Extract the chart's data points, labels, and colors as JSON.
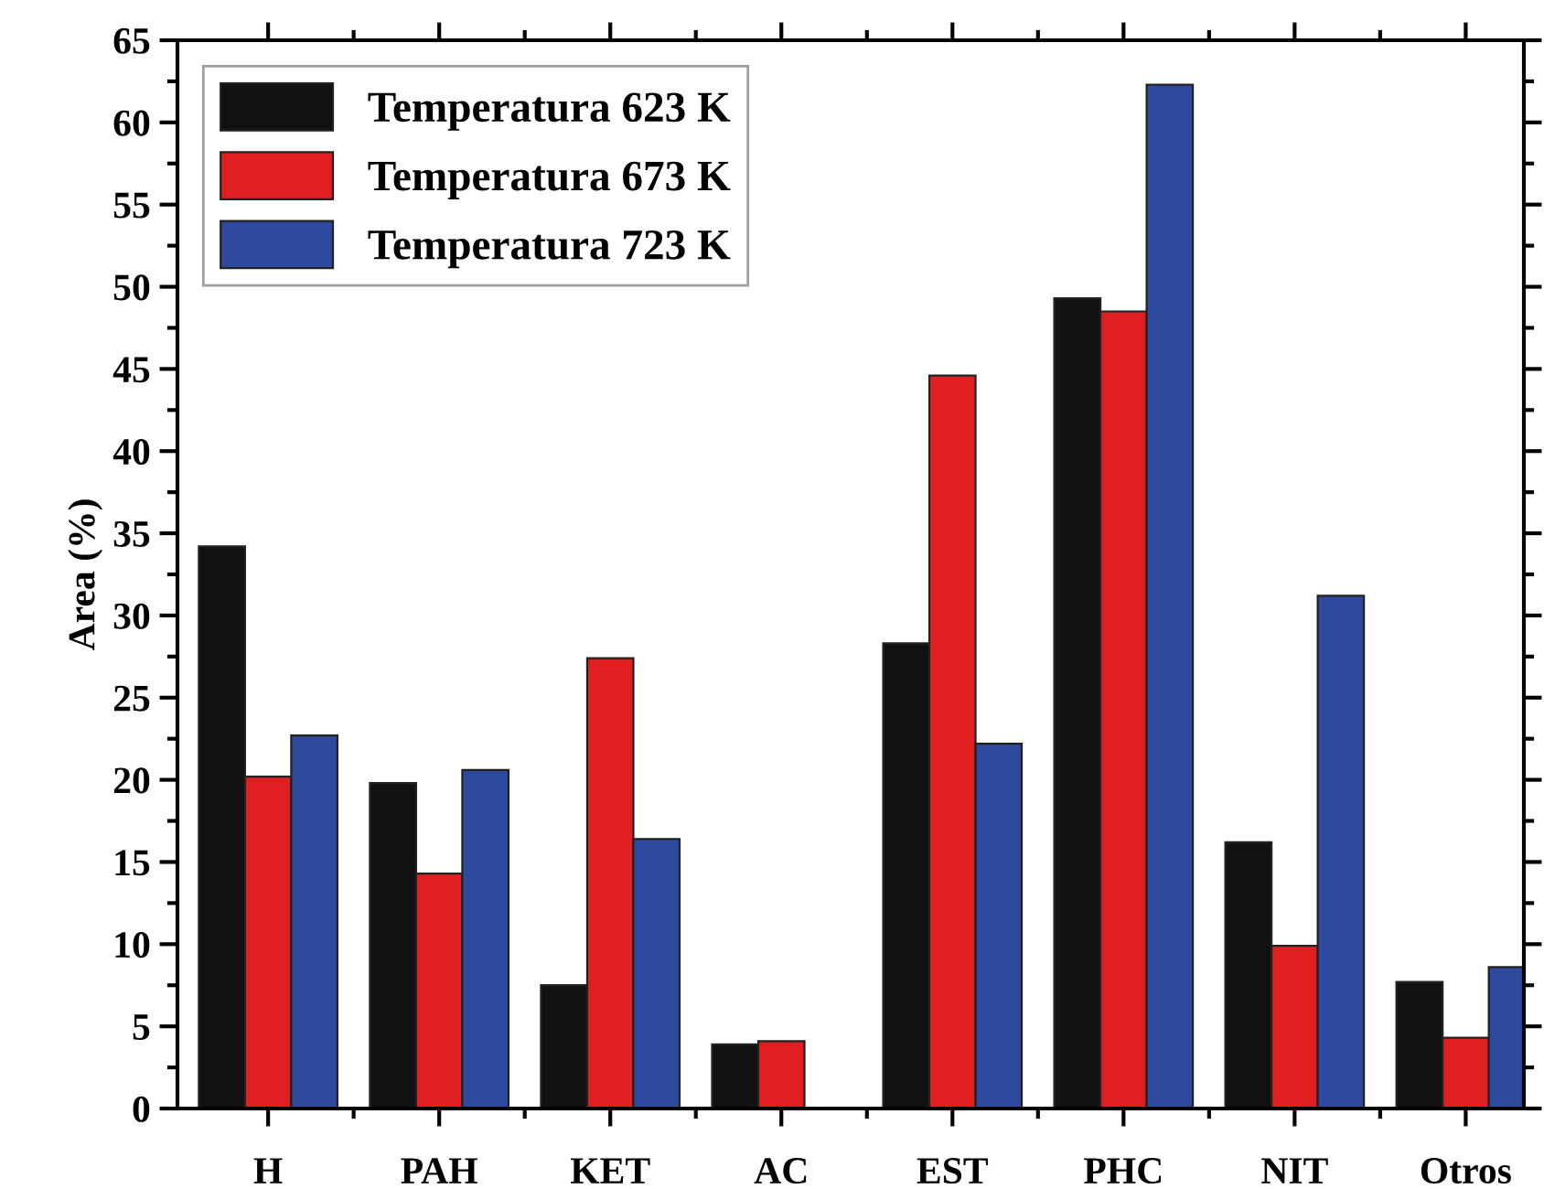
{
  "chart_data": {
    "type": "bar",
    "ylabel": "Area (%)",
    "categories": [
      "H",
      "PAH",
      "KET",
      "AC",
      "EST",
      "PHC",
      "NIT",
      "Otros"
    ],
    "series": [
      {
        "name": "Temperatura 623 K",
        "color": "#111111",
        "values": [
          34.2,
          19.8,
          7.5,
          3.9,
          28.3,
          49.3,
          16.2,
          7.7
        ]
      },
      {
        "name": "Temperatura 673 K",
        "color": "#e02020",
        "values": [
          20.2,
          14.3,
          27.4,
          4.1,
          44.6,
          48.5,
          9.9,
          4.3
        ]
      },
      {
        "name": "Temperatura 723 K",
        "color": "#2e4a9e",
        "values": [
          22.7,
          20.6,
          16.4,
          null,
          22.2,
          62.3,
          31.2,
          8.6
        ]
      }
    ],
    "ylim": [
      0,
      65
    ],
    "yticks": [
      0,
      5,
      10,
      15,
      20,
      25,
      30,
      35,
      40,
      45,
      50,
      55,
      60,
      65
    ],
    "legend": "top left",
    "grid": false
  }
}
